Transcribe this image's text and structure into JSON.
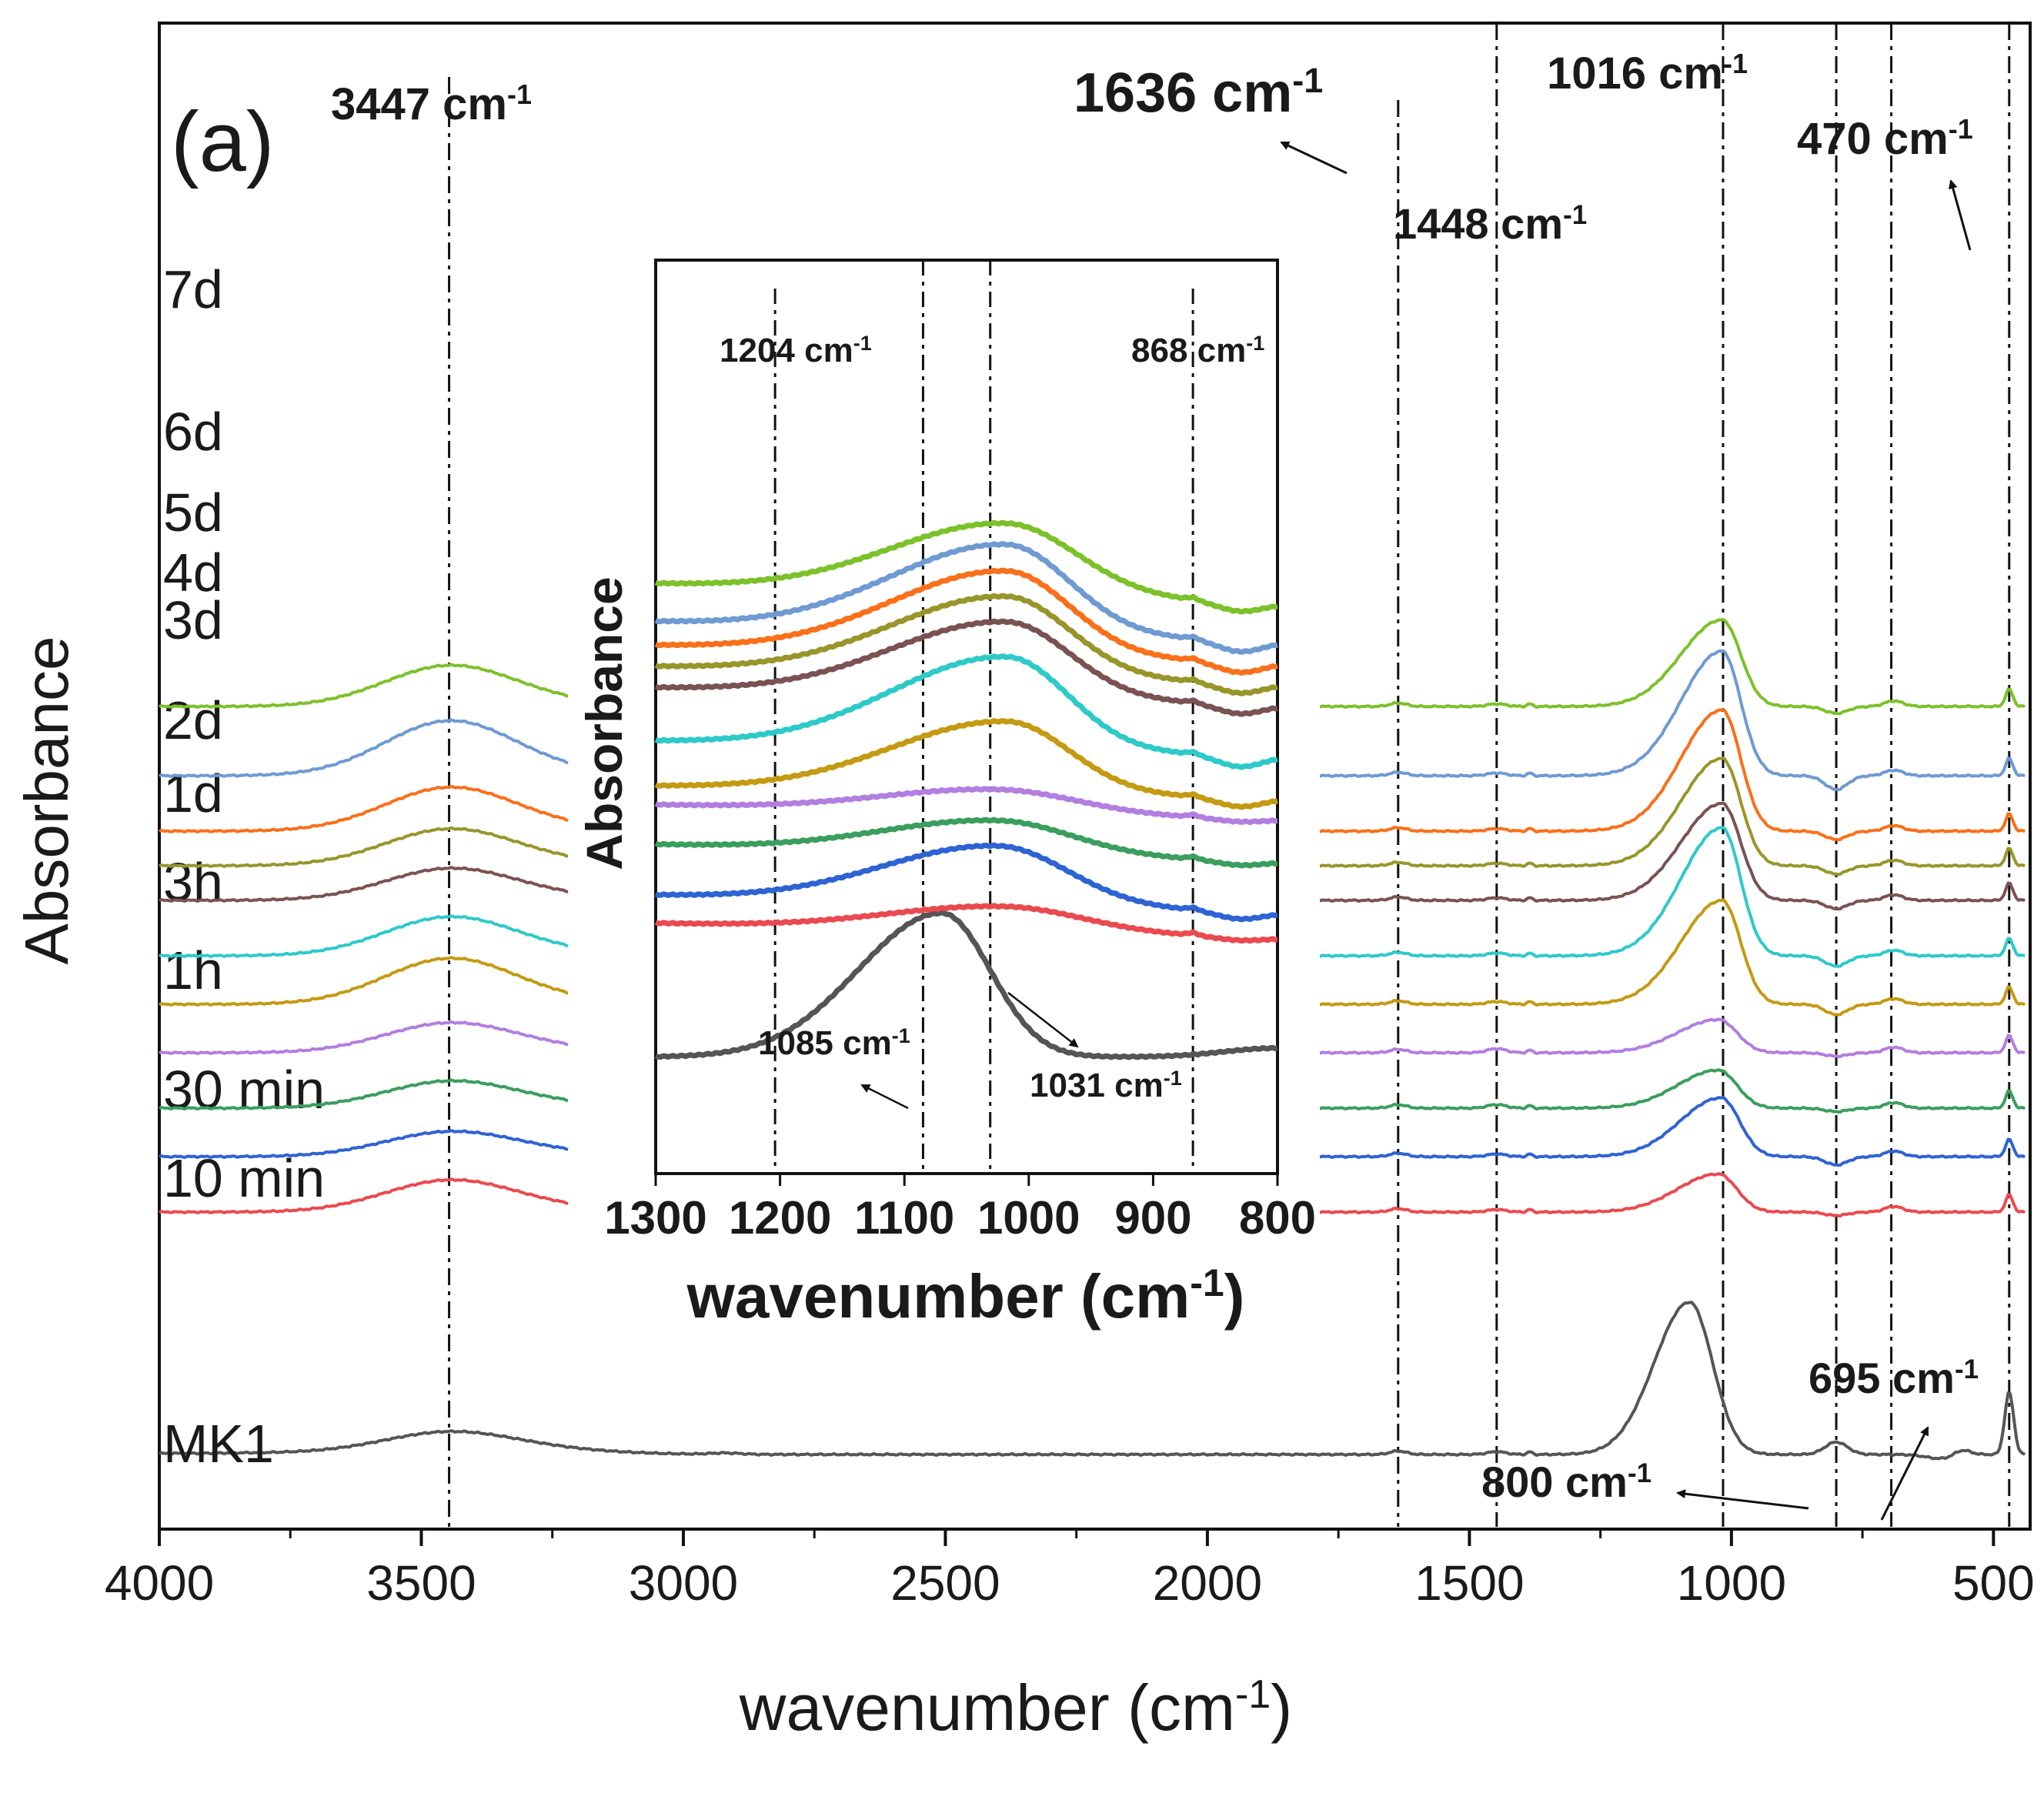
{
  "chart_data": [
    {
      "type": "line",
      "panel_label": "(a)",
      "xlabel": "wavenumber (cm",
      "xlabel_sup": "-1",
      "xlabel_close": ")",
      "ylabel": "Absorbance",
      "xlim": [
        4000,
        430
      ],
      "x_reversed": true,
      "x_ticks": [
        4000,
        3500,
        3000,
        2500,
        2000,
        1500,
        1000,
        500
      ],
      "axis_break": [
        3220,
        1840
      ],
      "reference_lines": [
        3447,
        1636,
        1448,
        1016,
        800,
        695,
        470
      ],
      "annotations": [
        {
          "text": "3447 cm",
          "sup": "-1",
          "wavenumber": 3447
        },
        {
          "text": "1636 cm",
          "sup": "-1",
          "wavenumber": 1636
        },
        {
          "text": "1448 cm",
          "sup": "-1",
          "wavenumber": 1448
        },
        {
          "text": "1016 cm",
          "sup": "-1",
          "wavenumber": 1016
        },
        {
          "text": "470 cm",
          "sup": "-1",
          "wavenumber": 470
        },
        {
          "text": "695 cm",
          "sup": "-1",
          "wavenumber": 695
        },
        {
          "text": "800 cm",
          "sup": "-1",
          "wavenumber": 800
        }
      ],
      "series": [
        {
          "name": "MK1",
          "color": "#555555",
          "offset": 0,
          "oh": 0.3,
          "hw": 0.08,
          "si": 2.2,
          "si_pos": 1080,
          "dip": 0.35
        },
        {
          "name": "10 min",
          "color": "#ea4a4f",
          "offset": 3.5,
          "oh": 0.45,
          "hw": 0.05,
          "si": 0.55,
          "si_pos": 1025,
          "dip": 0.05
        },
        {
          "name": "30 min",
          "color": "#2e63d3",
          "offset": 4.3,
          "oh": 0.35,
          "hw": 0.07,
          "si": 0.85,
          "si_pos": 1020,
          "dip": 0.12
        },
        {
          "name": "1h",
          "color": "#3a9e5e",
          "offset": 5.0,
          "oh": 0.38,
          "hw": 0.18,
          "si": 0.55,
          "si_pos": 1025,
          "dip": 0.05
        },
        {
          "name": "3h",
          "color": "#b27ee0",
          "offset": 5.8,
          "oh": 0.42,
          "hw": 0.25,
          "si": 0.48,
          "si_pos": 1025,
          "dip": 0.05
        },
        {
          "name": "1d",
          "color": "#c49a12",
          "offset": 6.5,
          "oh": 0.65,
          "hw": 0.08,
          "si": 1.5,
          "si_pos": 1018,
          "dip": 0.15
        },
        {
          "name": "2d",
          "color": "#2ec9c9",
          "offset": 7.2,
          "oh": 0.55,
          "hw": 0.08,
          "si": 1.85,
          "si_pos": 1018,
          "dip": 0.15
        },
        {
          "name": "3d",
          "color": "#7a5252",
          "offset": 8.0,
          "oh": 0.45,
          "hw": 0.06,
          "si": 1.4,
          "si_pos": 1018,
          "dip": 0.12
        },
        {
          "name": "4d",
          "color": "#98962a",
          "offset": 8.5,
          "oh": 0.52,
          "hw": 0.05,
          "si": 1.55,
          "si_pos": 1018,
          "dip": 0.12
        },
        {
          "name": "5d",
          "color": "#fa6f1a",
          "offset": 9.0,
          "oh": 0.62,
          "hw": 0.05,
          "si": 1.75,
          "si_pos": 1018,
          "dip": 0.12
        },
        {
          "name": "6d",
          "color": "#6f9ad2",
          "offset": 9.8,
          "oh": 0.78,
          "hw": 0.08,
          "si": 1.8,
          "si_pos": 1018,
          "dip": 0.2
        },
        {
          "name": "7d",
          "color": "#7cc12a",
          "offset": 10.8,
          "oh": 0.58,
          "hw": 0.06,
          "si": 1.25,
          "si_pos": 1018,
          "dip": 0.1
        }
      ]
    },
    {
      "type": "line",
      "name": "inset",
      "xlabel": "wavenumber (cm",
      "xlabel_sup": "-1",
      "xlabel_close": ")",
      "ylabel": "Absorbance",
      "xlim": [
        1300,
        800
      ],
      "x_reversed": true,
      "x_ticks": [
        1300,
        1200,
        1100,
        1000,
        900,
        800
      ],
      "reference_lines": [
        1204,
        1085,
        1031,
        868
      ],
      "annotations": [
        {
          "text": "1204 cm",
          "sup": "-1",
          "wavenumber": 1204
        },
        {
          "text": "868 cm",
          "sup": "-1",
          "wavenumber": 868
        },
        {
          "text": "1085 cm",
          "sup": "-1",
          "wavenumber": 1085
        },
        {
          "text": "1031 cm",
          "sup": "-1",
          "wavenumber": 1031
        }
      ],
      "series": [
        {
          "name": "MK1",
          "color": "#555555",
          "offset": 0.0,
          "amp": 1.7,
          "pos": 1070,
          "width": 70,
          "base": 0.15,
          "tail": 0.35
        },
        {
          "name": "10 min",
          "color": "#ea4a4f",
          "offset": 1.55,
          "amp": 0.3,
          "pos": 1020,
          "width": 90,
          "base": 0.3,
          "tail": 0.15
        },
        {
          "name": "30 min",
          "color": "#2e63d3",
          "offset": 1.85,
          "amp": 0.7,
          "pos": 1025,
          "width": 80,
          "base": 0.35,
          "tail": 0.2
        },
        {
          "name": "1h",
          "color": "#3a9e5e",
          "offset": 2.45,
          "amp": 0.4,
          "pos": 1025,
          "width": 85,
          "base": 0.35,
          "tail": 0.2
        },
        {
          "name": "3h",
          "color": "#b27ee0",
          "offset": 2.95,
          "amp": 0.28,
          "pos": 1025,
          "width": 90,
          "base": 0.3,
          "tail": 0.15
        },
        {
          "name": "1d",
          "color": "#c49a12",
          "offset": 3.2,
          "amp": 0.85,
          "pos": 1018,
          "width": 72,
          "base": 0.25,
          "tail": 0.2
        },
        {
          "name": "2d",
          "color": "#2ec9c9",
          "offset": 3.7,
          "amp": 1.1,
          "pos": 1018,
          "width": 70,
          "base": 0.3,
          "tail": 0.2
        },
        {
          "name": "3d",
          "color": "#7a5252",
          "offset": 4.3,
          "amp": 0.9,
          "pos": 1018,
          "width": 72,
          "base": 0.35,
          "tail": 0.2
        },
        {
          "name": "4d",
          "color": "#98962a",
          "offset": 4.55,
          "amp": 0.95,
          "pos": 1018,
          "width": 72,
          "base": 0.35,
          "tail": 0.2
        },
        {
          "name": "5d",
          "color": "#fa6f1a",
          "offset": 4.8,
          "amp": 1.0,
          "pos": 1018,
          "width": 72,
          "base": 0.35,
          "tail": 0.2
        },
        {
          "name": "6d",
          "color": "#6f9ad2",
          "offset": 5.05,
          "amp": 1.05,
          "pos": 1018,
          "width": 72,
          "base": 0.4,
          "tail": 0.2
        },
        {
          "name": "7d",
          "color": "#7cc12a",
          "offset": 5.5,
          "amp": 0.85,
          "pos": 1018,
          "width": 80,
          "base": 0.4,
          "tail": 0.2
        }
      ]
    }
  ]
}
